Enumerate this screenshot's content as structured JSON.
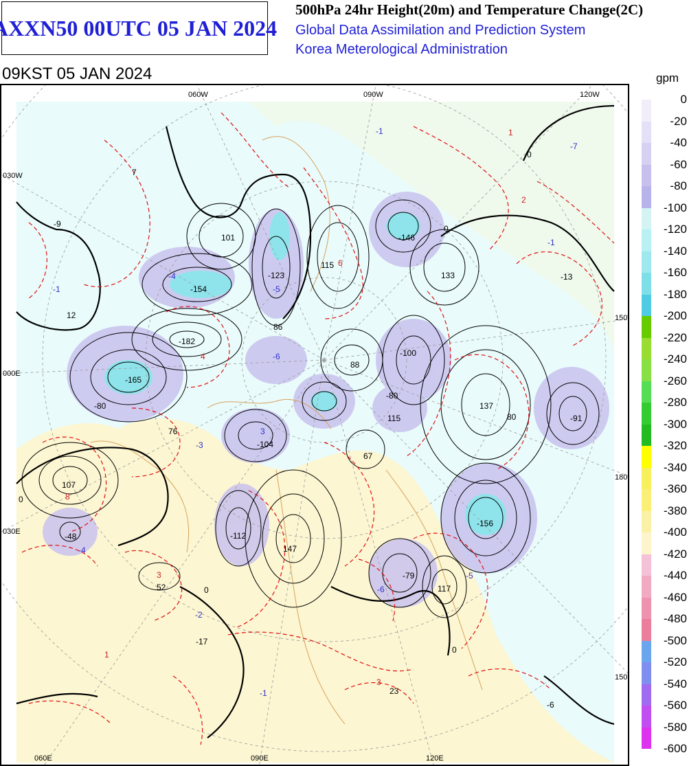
{
  "header": {
    "product_title": "AXXN50 00UTC 05 JAN 2024",
    "line1": "500hPa 24hr Height(20m) and Temperature Change(2C)",
    "line2": "Global Data Assimilation and Prediction System",
    "line3": "Korea Meterological Administration",
    "valid_time": "09KST 05 JAN 2024"
  },
  "map": {
    "lon_labels": {
      "top_060w": "060W",
      "top_090w": "090W",
      "top_120w": "120W",
      "bottom_060e": "060E",
      "bottom_090e": "090E",
      "bottom_120e": "120E",
      "left_030w": "030W",
      "left_000e": "000E",
      "left_030e": "030E",
      "right_150w": "150W",
      "right_180e": "180E",
      "right_150e": "150E"
    },
    "height_centers": [
      "7",
      "-9",
      "101",
      "-123",
      "115",
      "-146",
      "133",
      "-13",
      "12",
      "-154",
      "86",
      "-182",
      "-100",
      "88",
      "-165",
      "137",
      "-91",
      "76",
      "-104",
      "67",
      "115",
      "107",
      "-48",
      "-112",
      "147",
      "-156",
      "52",
      "-79",
      "117",
      "-17",
      "23",
      "-6"
    ],
    "temperature_centers": [
      "-1",
      "1",
      "2",
      "-1",
      "-7",
      "-4",
      "-5",
      "6",
      "3",
      "-6",
      "4",
      "-3",
      "8",
      "-1",
      "-4",
      "-6",
      "-5",
      "3",
      "-1",
      "1",
      "-2",
      "3"
    ],
    "contour_labels": [
      "0",
      "-80",
      "-80",
      "80",
      "0",
      "0",
      "0",
      "0"
    ]
  },
  "legend": {
    "unit": "gpm",
    "labels": [
      "0",
      "-20",
      "-40",
      "-60",
      "-80",
      "-100",
      "-120",
      "-140",
      "-160",
      "-180",
      "-200",
      "-220",
      "-240",
      "-260",
      "-280",
      "-300",
      "-320",
      "-340",
      "-360",
      "-380",
      "-400",
      "-420",
      "-440",
      "-460",
      "-480",
      "-500",
      "-520",
      "-540",
      "-560",
      "-580",
      "-600"
    ],
    "colors": [
      "#f1eefa",
      "#e4e0f7",
      "#d6d0f3",
      "#c7c0ee",
      "#b9b3eb",
      "#d4f4f4",
      "#b8f0f3",
      "#9fe9ee",
      "#7fdfe8",
      "#4fcbe3",
      "#66cc00",
      "#99dd33",
      "#88e044",
      "#55dd55",
      "#33cc33",
      "#22bb22",
      "#ffff00",
      "#f7f05c",
      "#fbef77",
      "#fbf1a6",
      "#fcf5cc",
      "#f4c1d6",
      "#f2a9c2",
      "#ee93af",
      "#eb7e9c",
      "#6aa6ee",
      "#7f8ff0",
      "#a06bf0",
      "#c04ef0",
      "#dd33ee",
      "#ee22ee"
    ]
  },
  "colors": {
    "title_blue": "#1f1fd6",
    "height_contour": "#000000",
    "temperature_contour": "#e01010",
    "coastline": "#d8a25c",
    "ocean_fill": "#e6fafa",
    "land_fill": "#fbf6d2"
  }
}
